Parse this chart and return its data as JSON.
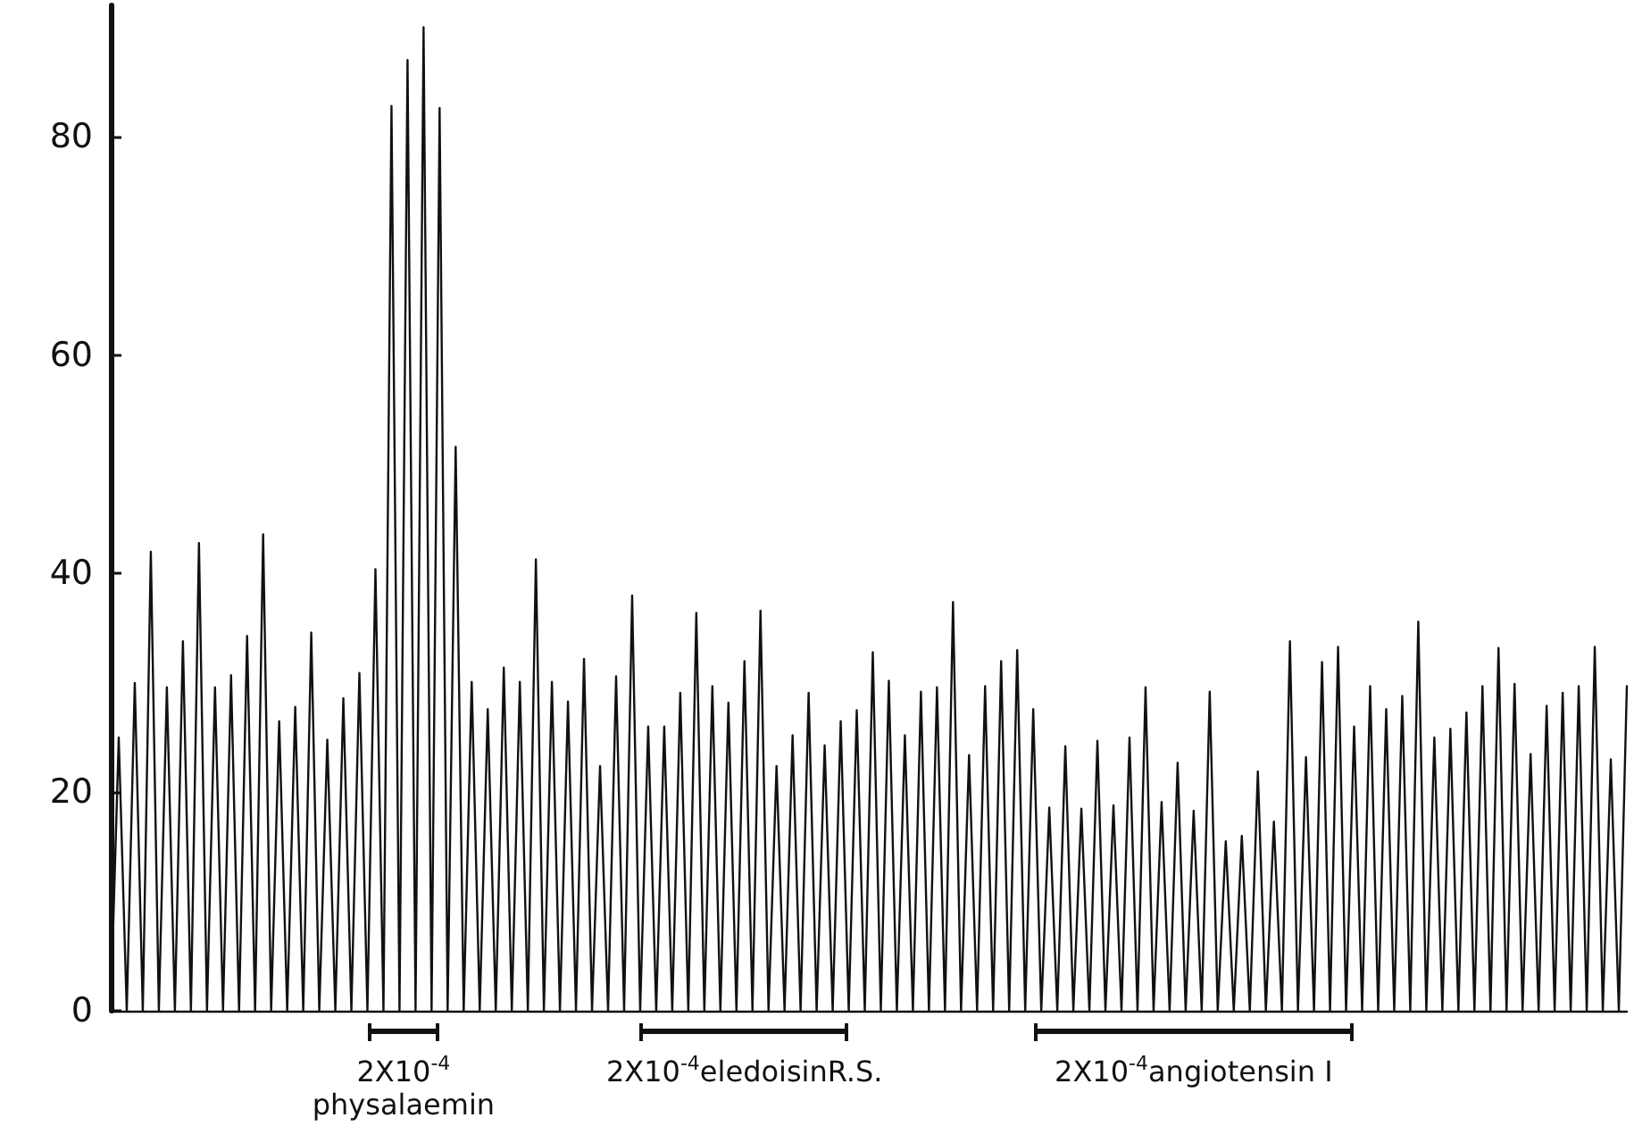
{
  "chart_data": {
    "type": "line",
    "color": "#111111",
    "line_style": "solid",
    "tick_labels": "y",
    "categories": [
      null,
      null,
      null,
      null,
      null,
      null,
      null,
      null,
      null,
      null,
      null,
      null,
      null,
      null,
      null,
      null,
      null,
      null,
      null,
      null,
      null,
      null,
      null,
      null,
      null,
      null,
      null,
      null,
      null,
      null,
      null,
      null,
      null,
      null,
      null,
      null,
      null,
      null,
      null,
      null,
      null,
      null,
      null,
      null,
      null,
      null,
      null,
      null,
      null,
      null,
      null,
      null,
      null,
      null,
      null,
      null,
      null,
      null,
      null,
      null,
      null,
      null,
      null,
      null,
      null,
      null,
      null,
      null,
      null,
      null,
      null,
      null,
      null,
      null,
      null,
      null,
      null,
      null,
      null,
      null,
      null,
      null,
      null,
      null,
      null,
      null,
      null,
      null,
      null,
      null,
      null,
      null,
      null,
      null,
      null,
      null,
      null,
      null,
      null,
      null,
      null,
      null,
      null,
      null,
      null,
      null,
      null,
      null,
      null,
      null,
      null,
      null,
      null,
      null,
      null,
      null,
      null,
      null,
      null,
      null,
      null,
      null,
      null,
      null,
      null,
      null,
      null,
      null,
      null,
      null,
      null,
      null,
      null,
      null,
      null,
      null,
      null,
      null,
      null,
      null,
      null,
      null,
      null,
      null,
      null,
      null,
      null,
      null,
      null,
      null,
      null,
      null,
      null,
      null,
      null,
      null,
      null,
      null,
      null,
      null,
      null,
      null,
      null,
      null,
      null,
      null,
      null,
      null,
      null,
      null,
      null,
      null,
      null,
      null,
      null,
      null,
      null,
      null,
      null,
      null,
      null,
      null,
      null,
      null,
      null,
      null,
      null,
      null,
      null,
      null
    ],
    "values": [
      0,
      25,
      0,
      30,
      0,
      42,
      0,
      29.6,
      0,
      33.8,
      0,
      42.8,
      0,
      29.6,
      0,
      30.7,
      0,
      34.3,
      0,
      43.6,
      0,
      26.5,
      0,
      27.8,
      0,
      34.6,
      0,
      24.8,
      0,
      28.6,
      0,
      30.9,
      0,
      40.4,
      0,
      82.8,
      0,
      87,
      0,
      90,
      0,
      82.6,
      0,
      51.6,
      0,
      30.1,
      0,
      27.6,
      0,
      31.4,
      0,
      30.1,
      0,
      41.3,
      0,
      30.1,
      0,
      28.3,
      0,
      32.2,
      0,
      22.4,
      0,
      30.6,
      0,
      38,
      0,
      26,
      0,
      26,
      0,
      29.1,
      0,
      36.4,
      0,
      29.7,
      0,
      28.2,
      0,
      32,
      0,
      36.6,
      0,
      22.4,
      0,
      25.2,
      0,
      29.1,
      0,
      24.3,
      0,
      26.5,
      0,
      27.5,
      0,
      32.8,
      0,
      30.2,
      0,
      25.2,
      0,
      29.2,
      0,
      29.6,
      0,
      37.4,
      0,
      23.4,
      0,
      29.7,
      0,
      32,
      0,
      33,
      0,
      27.6,
      0,
      18.6,
      0,
      24.2,
      0,
      18.5,
      0,
      24.7,
      0,
      18.8,
      0,
      25,
      0,
      29.6,
      0,
      19.1,
      0,
      22.7,
      0,
      18.3,
      0,
      29.2,
      0,
      15.5,
      0,
      16,
      0,
      21.9,
      0,
      17.3,
      0,
      33.8,
      0,
      23.2,
      0,
      31.9,
      0,
      33.3,
      0,
      26,
      0,
      29.7,
      0,
      27.6,
      0,
      28.8,
      0,
      35.6,
      0,
      25,
      0,
      25.8,
      0,
      27.3,
      0,
      29.7,
      0,
      33.2,
      0,
      29.9,
      0,
      23.5,
      0,
      27.9,
      0,
      29.1,
      0,
      29.7,
      0,
      33.3,
      0,
      23,
      0,
      29.7
    ],
    "ylim": [
      0,
      92
    ],
    "yticks": [
      0,
      20,
      40,
      60,
      80
    ],
    "annotations": [
      "2X10$^{-4}$\nphysalaemin",
      "2X10$^{-4}$eledoisinR.S.",
      "2X10$^{-4}$angiotensin I"
    ]
  }
}
